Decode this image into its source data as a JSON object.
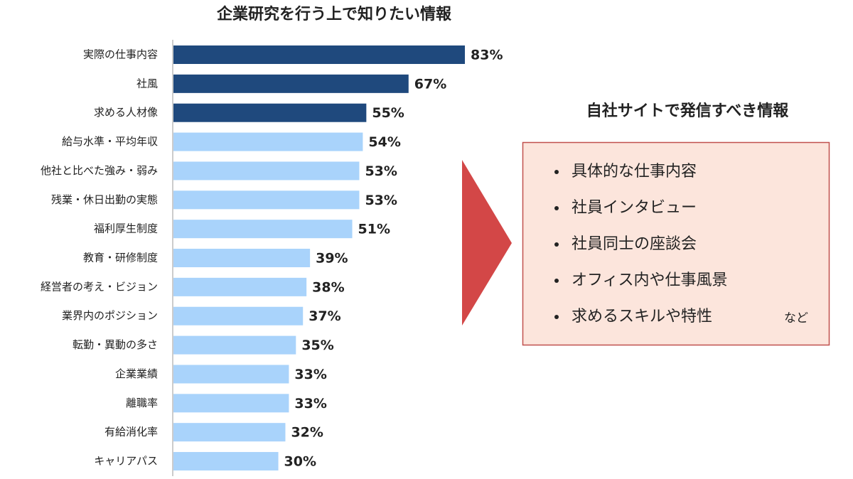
{
  "chart_data": {
    "type": "bar",
    "orientation": "horizontal",
    "title": "企業研究を行う上で知りたい情報",
    "categories": [
      "実際の仕事内容",
      "社風",
      "求める人材像",
      "給与水準・平均年収",
      "他社と比べた強み・弱み",
      "残業・休日出勤の実態",
      "福利厚生制度",
      "教育・研修制度",
      "経営者の考え・ビジョン",
      "業界内のポジション",
      "転勤・異動の多さ",
      "企業業績",
      "離職率",
      "有給消化率",
      "キャリアパス"
    ],
    "values": [
      83,
      67,
      55,
      54,
      53,
      53,
      51,
      39,
      38,
      37,
      35,
      33,
      33,
      32,
      30
    ],
    "value_labels": [
      "83%",
      "67%",
      "55%",
      "54%",
      "53%",
      "53%",
      "51%",
      "39%",
      "38%",
      "37%",
      "35%",
      "33%",
      "33%",
      "32%",
      "30%"
    ],
    "colors": [
      "#1f497d",
      "#1f497d",
      "#1f497d",
      "#a9d3fb",
      "#a9d3fb",
      "#a9d3fb",
      "#a9d3fb",
      "#a9d3fb",
      "#a9d3fb",
      "#a9d3fb",
      "#a9d3fb",
      "#a9d3fb",
      "#a9d3fb",
      "#a9d3fb",
      "#a9d3fb"
    ]
  },
  "panel": {
    "title": "自社サイトで発信すべき情報",
    "items": [
      "具体的な仕事内容",
      "社員インタビュー",
      "社員同士の座談会",
      "オフィス内や仕事風景",
      "求めるスキルや特性"
    ],
    "note": "など"
  }
}
